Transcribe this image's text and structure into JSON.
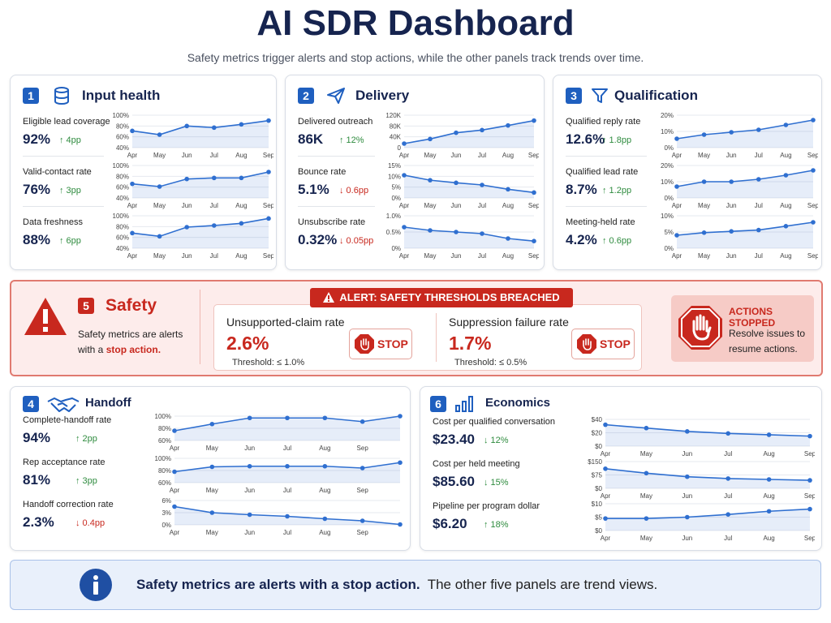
{
  "header": {
    "title": "AI SDR Dashboard",
    "subtitle": "Safety metrics trigger alerts and stop actions, while the other panels track trends over time."
  },
  "panels": [
    {
      "number": "1",
      "title": "Input health",
      "metrics": [
        {
          "label": "Eligible lead coverage",
          "value": "92%",
          "delta": "↑ 4pp",
          "delta_color": "#2e8b3e",
          "chart": {
            "type": "line",
            "categories": [
              "Apr",
              "May",
              "Jun",
              "Jul",
              "Aug",
              "Sep"
            ],
            "values": [
              71,
              64,
              80,
              77,
              83,
              90
            ],
            "ylim": [
              40,
              100
            ],
            "yticks": [
              {
                "value": 40,
                "label": "40%"
              },
              {
                "value": 60,
                "label": "60%"
              },
              {
                "value": 80,
                "label": "80%"
              },
              {
                "value": 100,
                "label": "100%"
              }
            ],
            "color": "#2f6fd0"
          }
        },
        {
          "label": "Valid-contact rate",
          "value": "76%",
          "delta": "↑ 3pp",
          "delta_color": "#2e8b3e",
          "chart": {
            "type": "line",
            "categories": [
              "Apr",
              "May",
              "Jun",
              "Jul",
              "Aug",
              "Sep"
            ],
            "values": [
              66,
              61,
              75,
              77,
              77,
              88
            ],
            "ylim": [
              40,
              100
            ],
            "yticks": [
              {
                "value": 40,
                "label": "40%"
              },
              {
                "value": 60,
                "label": "60%"
              },
              {
                "value": 80,
                "label": "80%"
              },
              {
                "value": 100,
                "label": "100%"
              }
            ],
            "color": "#2f6fd0"
          }
        },
        {
          "label": "Data freshness",
          "value": "88%",
          "delta": "↑ 6pp",
          "delta_color": "#2e8b3e",
          "chart": {
            "type": "line",
            "categories": [
              "Apr",
              "May",
              "Jun",
              "Jul",
              "Aug",
              "Sep"
            ],
            "values": [
              68,
              62,
              79,
              82,
              86,
              95
            ],
            "ylim": [
              40,
              100
            ],
            "yticks": [
              {
                "value": 40,
                "label": "40%"
              },
              {
                "value": 60,
                "label": "60%"
              },
              {
                "value": 80,
                "label": "80%"
              },
              {
                "value": 100,
                "label": "100%"
              }
            ],
            "color": "#2f6fd0"
          }
        }
      ]
    },
    {
      "number": "2",
      "title": "Delivery",
      "metrics": [
        {
          "label": "Delivered outreach",
          "value": "86K",
          "delta": "↑ 12%",
          "delta_color": "#2e8b3e",
          "chart": {
            "type": "line",
            "categories": [
              "Apr",
              "May",
              "Jun",
              "Jul",
              "Aug",
              "Sep"
            ],
            "values": [
              15000,
              32000,
              55000,
              65000,
              82000,
              100000
            ],
            "ylim": [
              0,
              120000
            ],
            "yticks": [
              0,
              {
                "value": 40000,
                "label": "40K"
              },
              {
                "value": 80000,
                "label": "80K"
              },
              {
                "value": 120000,
                "label": "120K"
              }
            ],
            "color": "#2f6fd0"
          }
        },
        {
          "label": "Bounce rate",
          "value": "5.1%",
          "delta": "↓ 0.6pp",
          "delta_color": "#c8281e",
          "chart": {
            "type": "line",
            "categories": [
              "Apr",
              "May",
              "Jun",
              "Jul",
              "Aug",
              "Sep"
            ],
            "values": [
              10.5,
              8.2,
              7,
              6,
              4,
              2.5
            ],
            "ylim": [
              0,
              15
            ],
            "yticks": [
              {
                "value": 0,
                "label": "0%"
              },
              {
                "value": 5,
                "label": "5%"
              },
              {
                "value": 10,
                "label": "10%"
              },
              {
                "value": 15,
                "label": "15%"
              }
            ],
            "color": "#2f6fd0"
          }
        },
        {
          "label": "Unsubscribe rate",
          "value": "0.32%",
          "delta": "↓ 0.05pp",
          "delta_color": "#c8281e",
          "chart": {
            "type": "line",
            "categories": [
              "Apr",
              "May",
              "Jun",
              "Jul",
              "Aug",
              "Sep"
            ],
            "values": [
              0.65,
              0.55,
              0.5,
              0.45,
              0.3,
              0.22
            ],
            "ylim": [
              0,
              1
            ],
            "yticks": [
              {
                "value": 0,
                "label": "0%"
              },
              {
                "value": 0.5,
                "label": "0.5%"
              },
              {
                "value": 1,
                "label": "1.0%"
              }
            ],
            "color": "#2f6fd0"
          }
        }
      ]
    },
    {
      "number": "3",
      "title": "Qualification",
      "metrics": [
        {
          "label": "Qualified reply rate",
          "value": "12.6%",
          "delta": "↑ 1.8pp",
          "delta_color": "#2e8b3e",
          "chart": {
            "type": "line",
            "categories": [
              "Apr",
              "May",
              "Jun",
              "Jul",
              "Aug",
              "Sep"
            ],
            "values": [
              5.5,
              8,
              9.5,
              11,
              14,
              17
            ],
            "ylim": [
              0,
              20
            ],
            "yticks": [
              {
                "value": 0,
                "label": "0%"
              },
              {
                "value": 10,
                "label": "10%"
              },
              {
                "value": 20,
                "label": "20%"
              }
            ],
            "color": "#2f6fd0"
          }
        },
        {
          "label": "Qualified lead rate",
          "value": "8.7%",
          "delta": "↑ 1.2pp",
          "delta_color": "#2e8b3e",
          "chart": {
            "type": "line",
            "categories": [
              "Apr",
              "May",
              "Jun",
              "Jul",
              "Aug",
              "Sep"
            ],
            "values": [
              7,
              10,
              10,
              11.5,
              14,
              17
            ],
            "ylim": [
              0,
              20
            ],
            "yticks": [
              {
                "value": 0,
                "label": "0%"
              },
              {
                "value": 10,
                "label": "10%"
              },
              {
                "value": 20,
                "label": "20%"
              }
            ],
            "color": "#2f6fd0"
          }
        },
        {
          "label": "Meeting-held rate",
          "value": "4.2%",
          "delta": "↑ 0.6pp",
          "delta_color": "#2e8b3e",
          "chart": {
            "type": "line",
            "categories": [
              "Apr",
              "May",
              "Jun",
              "Jul",
              "Aug",
              "Sep"
            ],
            "values": [
              4,
              4.8,
              5.2,
              5.6,
              6.8,
              8
            ],
            "ylim": [
              0,
              10
            ],
            "yticks": [
              {
                "value": 0,
                "label": "0%"
              },
              {
                "value": 5,
                "label": "5%"
              },
              {
                "value": 10,
                "label": "10%"
              }
            ],
            "color": "#2f6fd0"
          }
        }
      ]
    },
    {
      "number": "4",
      "title": "Handoff",
      "metrics": [
        {
          "label": "Complete-handoff rate",
          "value": "94%",
          "delta": "↑ 2pp",
          "delta_color": "#2e8b3e",
          "chart": {
            "type": "line",
            "categories": [
              "Apr",
              "May",
              "Jun",
              "Jul",
              "Aug",
              "Sep",
              null
            ],
            "values": [
              76,
              87,
              97,
              97,
              97,
              91,
              100
            ],
            "ylim": [
              60,
              100
            ],
            "yticks": [
              {
                "value": 60,
                "label": "60%"
              },
              {
                "value": 80,
                "label": "80%"
              },
              {
                "value": 100,
                "label": "100%"
              }
            ],
            "color": "#2f6fd0"
          }
        },
        {
          "label": "Rep acceptance rate",
          "value": "81%",
          "delta": "↑ 3pp",
          "delta_color": "#2e8b3e",
          "chart": {
            "type": "line",
            "categories": [
              "Apr",
              "May",
              "Jun",
              "Jul",
              "Aug",
              "Sep",
              null
            ],
            "values": [
              78,
              86,
              87,
              87,
              87,
              84,
              93
            ],
            "ylim": [
              60,
              100
            ],
            "yticks": [
              {
                "value": 60,
                "label": "60%"
              },
              {
                "value": 80,
                "label": "80%"
              },
              {
                "value": 100,
                "label": "100%"
              }
            ],
            "color": "#2f6fd0"
          }
        },
        {
          "label": "Handoff correction rate",
          "value": "2.3%",
          "delta": "↓ 0.4pp",
          "delta_color": "#c8281e",
          "chart": {
            "type": "line",
            "categories": [
              "Apr",
              "May",
              "Jun",
              "Jul",
              "Aug",
              "Sep",
              null
            ],
            "values": [
              4.5,
              3,
              2.5,
              2.1,
              1.5,
              1,
              0.1
            ],
            "ylim": [
              0,
              6
            ],
            "yticks": [
              {
                "value": 0,
                "label": "0%"
              },
              {
                "value": 3,
                "label": "3%"
              },
              {
                "value": 6,
                "label": "6%"
              }
            ],
            "color": "#2f6fd0"
          }
        }
      ]
    },
    {
      "number": "6",
      "title": "Economics",
      "metrics": [
        {
          "label": "Cost per qualified conversation",
          "value": "$23.40",
          "delta": "↓ 12%",
          "delta_color": "#2e8b3e",
          "chart": {
            "type": "line",
            "categories": [
              "Apr",
              "May",
              "Jun",
              "Jul",
              "Aug",
              "Sep"
            ],
            "values": [
              32,
              27,
              22,
              19,
              17,
              15
            ],
            "ylim": [
              0,
              40
            ],
            "yticks": [
              {
                "value": 0,
                "label": "$0"
              },
              {
                "value": 20,
                "label": "$20"
              },
              {
                "value": 40,
                "label": "$40"
              }
            ],
            "color": "#2f6fd0"
          }
        },
        {
          "label": "Cost per held meeting",
          "value": "$85.60",
          "delta": "↓ 15%",
          "delta_color": "#2e8b3e",
          "chart": {
            "type": "line",
            "categories": [
              "Apr",
              "May",
              "Jun",
              "Jul",
              "Aug",
              "Sep"
            ],
            "values": [
              110,
              85,
              65,
              55,
              50,
              45
            ],
            "ylim": [
              0,
              150
            ],
            "yticks": [
              {
                "value": 0,
                "label": "$0"
              },
              {
                "value": 75,
                "label": "$75"
              },
              {
                "value": 150,
                "label": "$150"
              }
            ],
            "color": "#2f6fd0"
          }
        },
        {
          "label": "Pipeline per program dollar",
          "value": "$6.20",
          "delta": "↑ 18%",
          "delta_color": "#2e8b3e",
          "chart": {
            "type": "line",
            "categories": [
              "Apr",
              "May",
              "Jun",
              "Jul",
              "Aug",
              "Sep"
            ],
            "values": [
              4.5,
              4.5,
              5,
              6,
              7.2,
              8
            ],
            "ylim": [
              0,
              10
            ],
            "yticks": [
              {
                "value": 0,
                "label": "$0"
              },
              {
                "value": 5,
                "label": "$5"
              },
              {
                "value": 10,
                "label": "$10"
              }
            ],
            "color": "#2f6fd0"
          }
        }
      ]
    }
  ],
  "safety": {
    "number": "5",
    "title": "Safety",
    "description": "Safety metrics are alerts with a ",
    "description_emphasis": "stop action.",
    "alert": "ALERT:  SAFETY THRESHOLDS BREACHED",
    "metrics": [
      {
        "label": "Unsupported-claim rate",
        "value": "2.6%",
        "threshold": "Threshold: ≤ 1.0%",
        "action": "STOP"
      },
      {
        "label": "Suppression failure rate",
        "value": "1.7%",
        "threshold": "Threshold: ≤ 0.5%",
        "action": "STOP"
      }
    ],
    "stopped": {
      "title": "ACTIONS STOPPED",
      "text": "Resolve issues to resume actions."
    }
  },
  "footer": {
    "emphasis": "Safety metrics are alerts with a stop action.",
    "text": "The other five panels are trend views."
  }
}
